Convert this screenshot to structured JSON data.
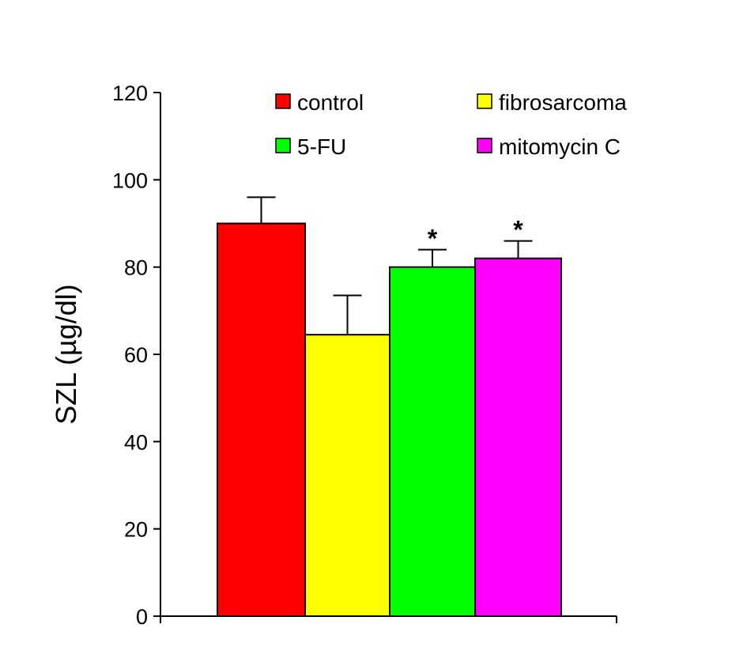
{
  "chart_data": {
    "type": "bar",
    "title": "",
    "xlabel": "",
    "ylabel": "SZL (µg/dl)",
    "ylim": [
      0,
      120
    ],
    "yticks": [
      0,
      20,
      40,
      60,
      80,
      100,
      120
    ],
    "grid": false,
    "legend_position": "top",
    "categories": [
      "control",
      "fibrosarcoma",
      "5-FU",
      "mitomycin C"
    ],
    "series": [
      {
        "name": "control",
        "value": 90,
        "error": 6,
        "color": "#ff0000",
        "annotation": ""
      },
      {
        "name": "fibrosarcoma",
        "value": 64.5,
        "error": 9,
        "color": "#ffff00",
        "annotation": ""
      },
      {
        "name": "5-FU",
        "value": 80,
        "error": 4,
        "color": "#00ff00",
        "annotation": "*"
      },
      {
        "name": "mitomycin C",
        "value": 82,
        "error": 4,
        "color": "#ff00ff",
        "annotation": "*"
      }
    ]
  }
}
